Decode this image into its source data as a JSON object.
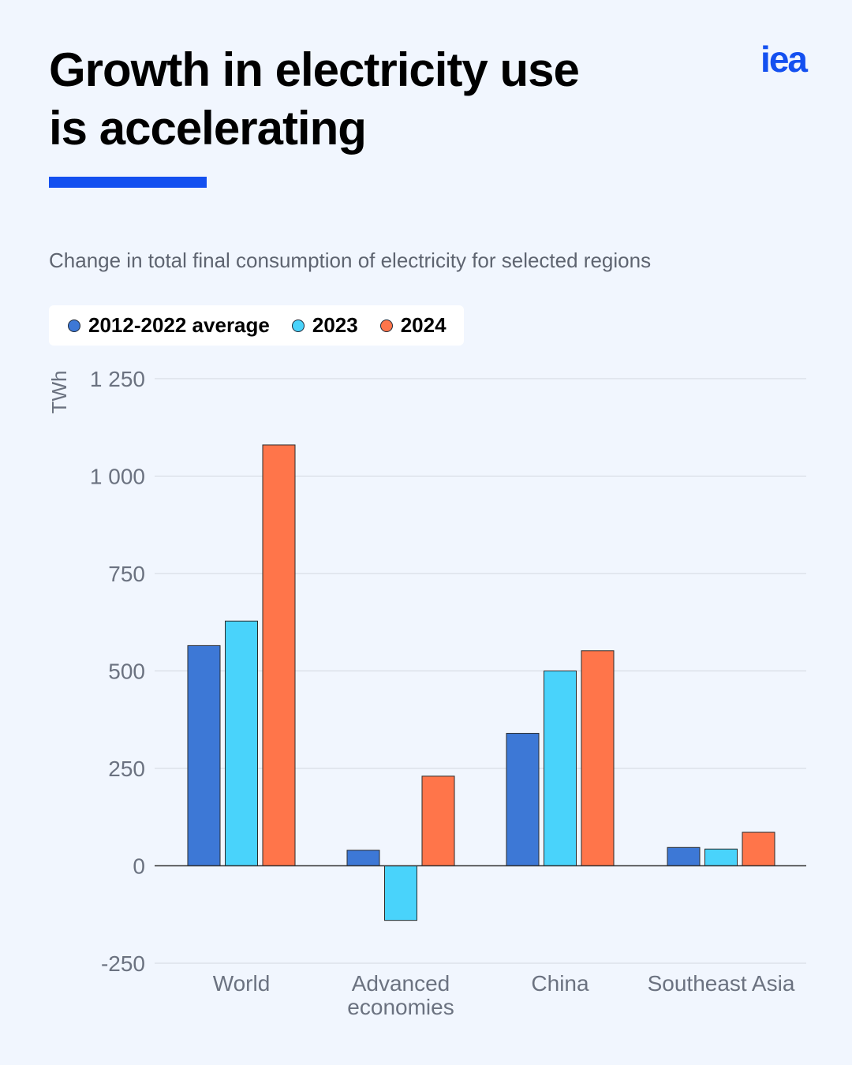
{
  "header": {
    "title_line1": "Growth in electricity use",
    "title_line2": "is accelerating",
    "logo_text": "iea"
  },
  "colors": {
    "accent": "#1450f0",
    "background": "#f1f6fe"
  },
  "chart_data": {
    "type": "bar",
    "title": "Growth in electricity use is accelerating",
    "subtitle": "Change in total final consumption of electricity for selected regions",
    "ylabel": "TWh",
    "xlabel": "",
    "ylim": [
      -250,
      1250
    ],
    "yticks": [
      -250,
      0,
      250,
      500,
      750,
      1000,
      1250
    ],
    "ytick_labels": [
      "-250",
      "0",
      "250",
      "500",
      "750",
      "1 000",
      "1 250"
    ],
    "grid": true,
    "legend_position": "top-left",
    "categories": [
      [
        "World"
      ],
      [
        "Advanced",
        "economies"
      ],
      [
        "China"
      ],
      [
        "Southeast Asia"
      ]
    ],
    "series": [
      {
        "name": "2012-2022 average",
        "color": "#3d78d6",
        "values": [
          565,
          40,
          340,
          47
        ]
      },
      {
        "name": "2023",
        "color": "#49d3fb",
        "values": [
          628,
          -140,
          500,
          43
        ]
      },
      {
        "name": "2024",
        "color": "#ff754a",
        "values": [
          1080,
          230,
          552,
          86
        ]
      }
    ]
  }
}
